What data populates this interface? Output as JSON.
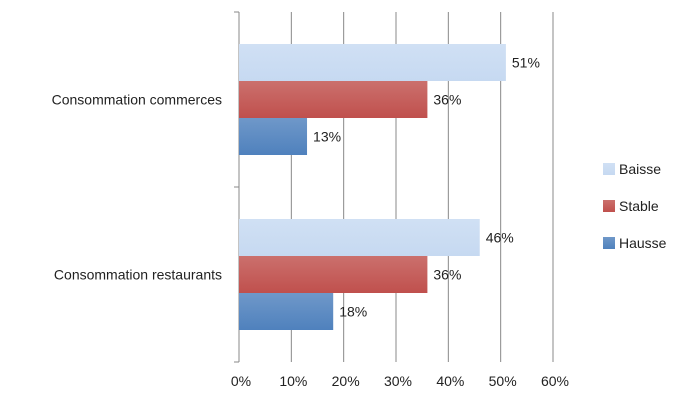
{
  "chart_data": {
    "type": "bar",
    "orientation": "horizontal",
    "categories": [
      "Consommation commerces",
      "Consommation restaurants"
    ],
    "series": [
      {
        "name": "Baisse",
        "values": [
          51,
          46
        ],
        "color": "#C6D9F1"
      },
      {
        "name": "Stable",
        "values": [
          36,
          36
        ],
        "color": "#C0504D"
      },
      {
        "name": "Hausse",
        "values": [
          13,
          18
        ],
        "color": "#4F81BD"
      }
    ],
    "value_unit": "%",
    "xlim": [
      0,
      60
    ],
    "xticks": [
      0,
      10,
      20,
      30,
      40,
      50,
      60
    ],
    "tick_labels": [
      "0%",
      "10%",
      "20%",
      "30%",
      "40%",
      "50%",
      "60%"
    ],
    "data_labels": [
      [
        "51%",
        "46%"
      ],
      [
        "36%",
        "36%"
      ],
      [
        "13%",
        "18%"
      ]
    ],
    "grid": "vertical",
    "legend_position": "right",
    "title": "",
    "xlabel": "",
    "ylabel": ""
  }
}
